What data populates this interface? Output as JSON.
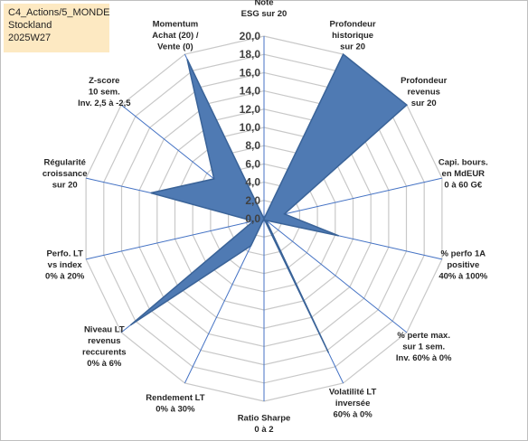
{
  "info": {
    "line1": "C4_Actions/5_MONDE",
    "line2": "Stockland",
    "line3": "2025W27"
  },
  "colors": {
    "fill": "#4f7ab3",
    "stroke": "#3a6398",
    "grid": "#c8c8c8",
    "spoke": "#4472c4"
  },
  "chart_data": {
    "type": "radar",
    "rmin": 0,
    "rmax": 20,
    "tick_labels": [
      "0,0",
      "2,0",
      "4,0",
      "6,0",
      "8,0",
      "10,0",
      "12,0",
      "14,0",
      "16,0",
      "18,0",
      "20,0"
    ],
    "axes": [
      {
        "label": [
          "Note",
          "ESG sur 20"
        ],
        "value": 0
      },
      {
        "label": [
          "Profondeur",
          "historique",
          "sur 20"
        ],
        "value": 20
      },
      {
        "label": [
          "Profondeur",
          "revenus",
          "sur 20"
        ],
        "value": 20
      },
      {
        "label": [
          "Capi. bours.",
          "en MdEUR",
          "0 à 60 G€"
        ],
        "value": 2.3
      },
      {
        "label": [
          "% perfo 1A",
          "positive",
          "40% à 100%"
        ],
        "value": 8.4
      },
      {
        "label": [
          "% perte max.",
          "sur 1 sem.",
          "Inv. 60% à 0%"
        ],
        "value": 0.3
      },
      {
        "label": [
          "Volatilité LT",
          "inversée",
          "60% à 0%"
        ],
        "value": 16.3
      },
      {
        "label": [
          "Ratio Sharpe",
          "0 à 2"
        ],
        "value": 0
      },
      {
        "label": [
          "Rendement LT",
          "0% à 30%"
        ],
        "value": 3.3
      },
      {
        "label": [
          "Niveau LT",
          "revenus",
          "reccurents",
          "0% à 6%"
        ],
        "value": 18.7
      },
      {
        "label": [
          "Perfo. LT",
          "vs index",
          "0% à 20%"
        ],
        "value": 1.2
      },
      {
        "label": [
          "Régularité",
          "croissance",
          "sur 20"
        ],
        "value": 12.7
      },
      {
        "label": [
          "Z-score",
          "10 sem.",
          "Inv. 2,5 à -2,5"
        ],
        "value": 7
      },
      {
        "label": [
          "Momentum",
          "Achat (20) /",
          "Vente (0)"
        ],
        "value": 19.4
      }
    ]
  }
}
